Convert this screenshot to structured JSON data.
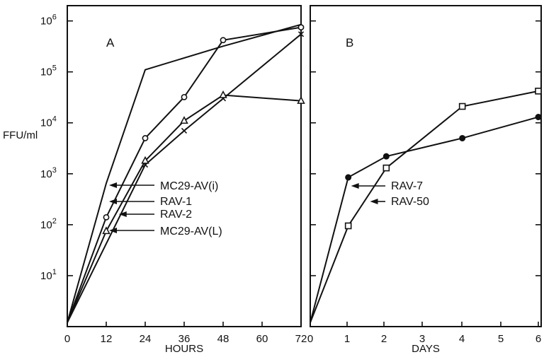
{
  "chart_data": [
    {
      "type": "line",
      "panel_label": "A",
      "xlabel": "HOURS",
      "ylabel": "FFU/ml",
      "y_scale": "log",
      "xlim": [
        0,
        72
      ],
      "ylim": [
        1,
        1000000
      ],
      "x_ticks": [
        "0",
        "12",
        "24",
        "36",
        "48",
        "60",
        "72"
      ],
      "y_tick_labels": [
        {
          "value": 10,
          "base": "10",
          "exp": "1"
        },
        {
          "value": 100,
          "base": "10",
          "exp": "2"
        },
        {
          "value": 1000,
          "base": "10",
          "exp": "3"
        },
        {
          "value": 10000,
          "base": "10",
          "exp": "4"
        },
        {
          "value": 100000,
          "base": "10",
          "exp": "5"
        },
        {
          "value": 1000000,
          "base": "10",
          "exp": "6"
        }
      ],
      "grid": false,
      "series": [
        {
          "name": "MC29-AV(i)",
          "marker": "none",
          "points": [
            [
              0,
              1.2
            ],
            [
              12,
              650
            ],
            [
              24,
              110000
            ],
            [
              48,
              320000
            ],
            [
              72,
              850000
            ]
          ],
          "label_anchor": [
            12,
            650
          ]
        },
        {
          "name": "RAV-1",
          "marker": "circle",
          "points": [
            [
              0,
              1.2
            ],
            [
              12,
              140
            ],
            [
              24,
              5000
            ],
            [
              36,
              32000
            ],
            [
              48,
              420000
            ],
            [
              72,
              750000
            ]
          ],
          "label_anchor": [
            12,
            140
          ]
        },
        {
          "name": "RAV-2",
          "marker": "x",
          "points": [
            [
              0,
              1.2
            ],
            [
              24,
              1500
            ],
            [
              36,
              7000
            ],
            [
              48,
              30000
            ],
            [
              72,
              550000
            ]
          ],
          "label_anchor": [
            15,
            140
          ]
        },
        {
          "name": "MC29-AV(L)",
          "marker": "triangle",
          "points": [
            [
              0,
              1.2
            ],
            [
              12,
              75
            ],
            [
              24,
              1800
            ],
            [
              36,
              11000
            ],
            [
              48,
              35000
            ],
            [
              72,
              27000
            ]
          ],
          "label_anchor": [
            12,
            75
          ]
        }
      ]
    },
    {
      "type": "line",
      "panel_label": "B",
      "xlabel": "DAYS",
      "y_scale": "log",
      "xlim": [
        0,
        6
      ],
      "ylim": [
        1,
        1000000
      ],
      "x_ticks": [
        "0",
        "1",
        "2",
        "3",
        "4",
        "5",
        "6"
      ],
      "grid": false,
      "series": [
        {
          "name": "RAV-7",
          "marker": "filled-circle",
          "points": [
            [
              0,
              1.2
            ],
            [
              1,
              850
            ],
            [
              2,
              2200
            ],
            [
              4,
              5000
            ],
            [
              6,
              13000
            ]
          ],
          "label_anchor": [
            1,
            600
          ]
        },
        {
          "name": "RAV-50",
          "marker": "square",
          "points": [
            [
              0,
              1.2
            ],
            [
              1,
              95
            ],
            [
              2,
              1300
            ],
            [
              4,
              21000
            ],
            [
              6,
              42000
            ]
          ],
          "label_anchor": [
            1.5,
            300
          ]
        }
      ]
    }
  ]
}
